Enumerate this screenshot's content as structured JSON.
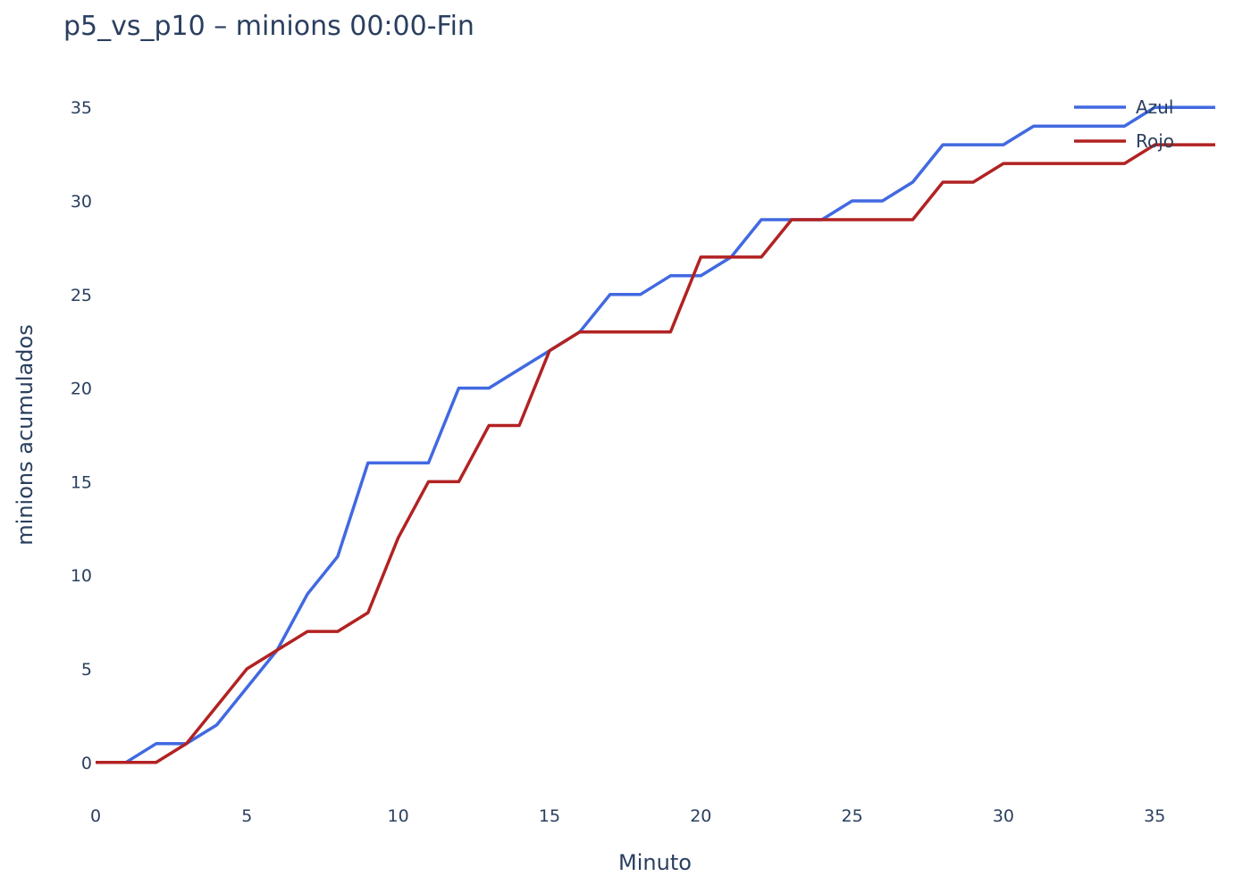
{
  "chart_data": {
    "type": "line",
    "title": "p5_vs_p10 – minions 00:00-Fin",
    "xlabel": "Minuto",
    "ylabel": "minions acumulados",
    "xlim": [
      0,
      37
    ],
    "ylim": [
      -2.3,
      37.3
    ],
    "x_ticks": [
      0,
      5,
      10,
      15,
      20,
      25,
      30,
      35
    ],
    "y_ticks": [
      0,
      5,
      10,
      15,
      20,
      25,
      30,
      35
    ],
    "grid": false,
    "legend_position": "top-right",
    "x": [
      0,
      1,
      2,
      3,
      4,
      5,
      6,
      7,
      8,
      9,
      10,
      11,
      12,
      13,
      14,
      15,
      16,
      17,
      18,
      19,
      20,
      21,
      22,
      23,
      24,
      25,
      26,
      27,
      28,
      29,
      30,
      31,
      32,
      33,
      34,
      35,
      36,
      37
    ],
    "series": [
      {
        "name": "Azul",
        "color": "#4169e1",
        "values": [
          0,
          0,
          1,
          1,
          2,
          4,
          6,
          9,
          11,
          16,
          16,
          16,
          20,
          20,
          21,
          22,
          23,
          25,
          25,
          26,
          26,
          27,
          29,
          29,
          29,
          30,
          30,
          31,
          33,
          33,
          33,
          34,
          34,
          34,
          34,
          35,
          35,
          35
        ]
      },
      {
        "name": "Rojo",
        "color": "#b22222",
        "values": [
          0,
          0,
          0,
          1,
          3,
          5,
          6,
          7,
          7,
          8,
          12,
          15,
          15,
          18,
          18,
          22,
          23,
          23,
          23,
          23,
          27,
          27,
          27,
          29,
          29,
          29,
          29,
          29,
          31,
          31,
          32,
          32,
          32,
          32,
          32,
          33,
          33,
          33
        ]
      }
    ]
  }
}
